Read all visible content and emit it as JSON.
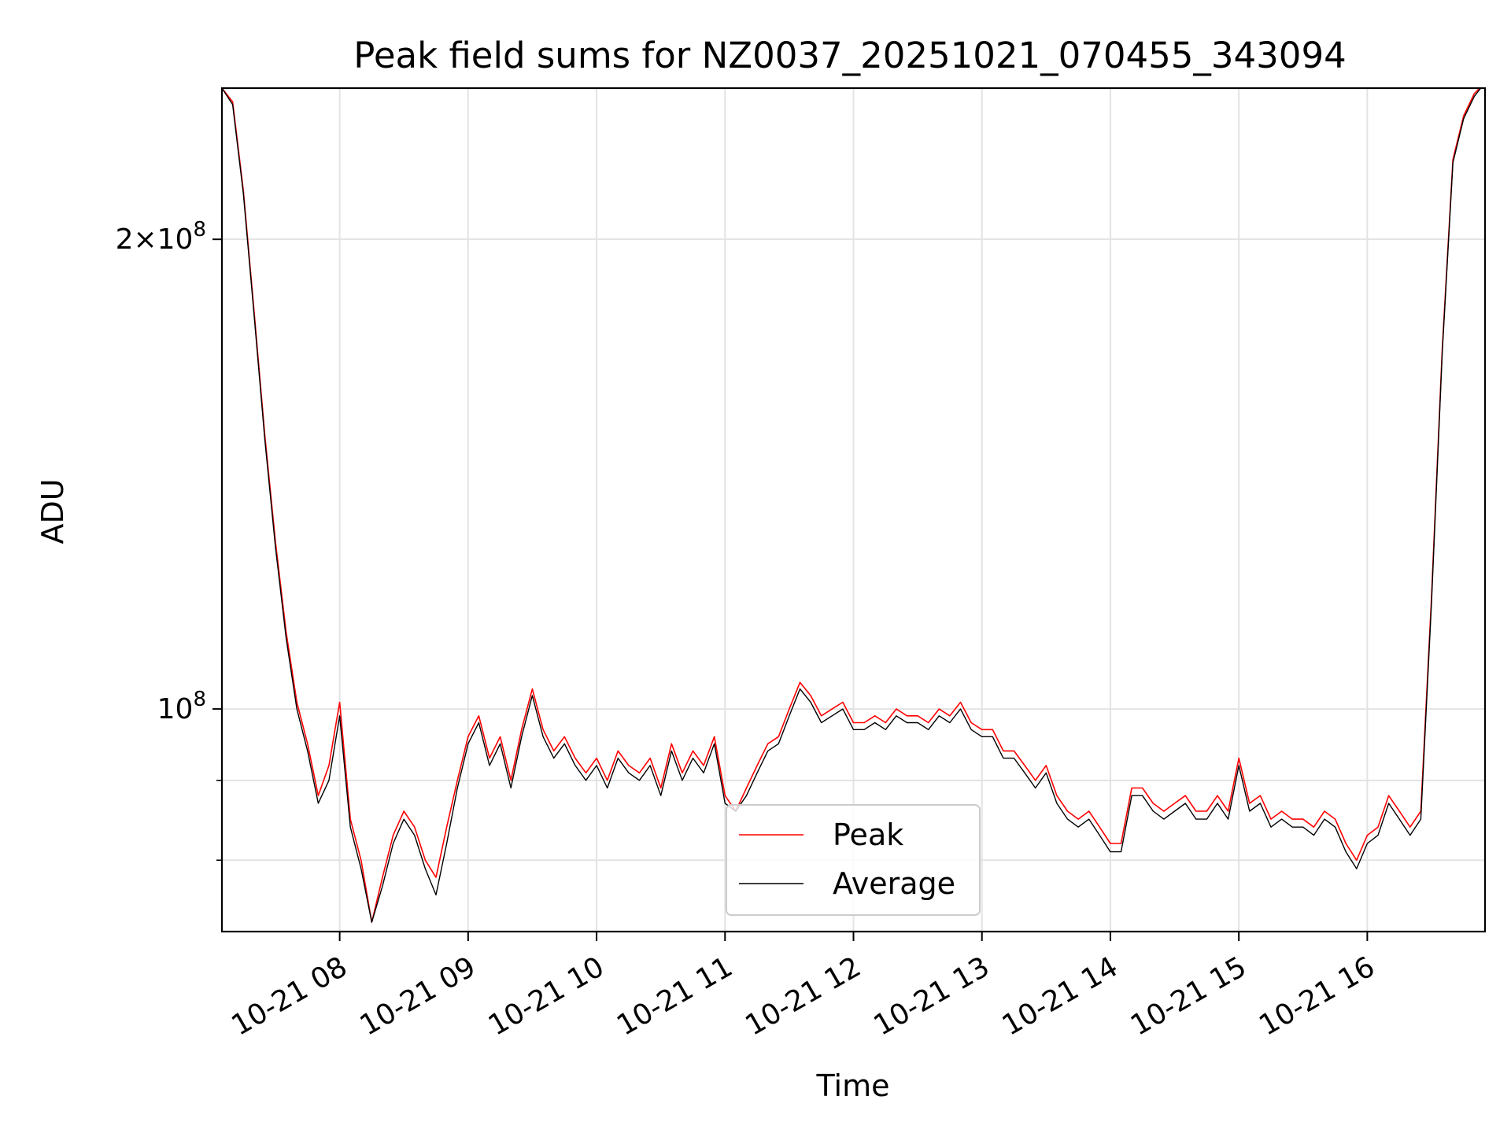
{
  "chart_data": {
    "type": "line",
    "title": "Peak field sums for NZ0037_20251021_070455_343094",
    "xlabel": "Time",
    "ylabel": "ADU",
    "y_scale": "log",
    "grid": true,
    "legend_position": "lower center",
    "xlim": [
      "2025-10-21 07:05",
      "2025-10-21 16:55"
    ],
    "ylim": [
      72000000,
      250000000
    ],
    "x_ticks": [
      "2025-10-21 08:00",
      "2025-10-21 09:00",
      "2025-10-21 10:00",
      "2025-10-21 11:00",
      "2025-10-21 12:00",
      "2025-10-21 13:00",
      "2025-10-21 14:00",
      "2025-10-21 15:00",
      "2025-10-21 16:00"
    ],
    "x_tick_labels": [
      "10-21 08",
      "10-21 09",
      "10-21 10",
      "10-21 11",
      "10-21 12",
      "10-21 13",
      "10-21 14",
      "10-21 15",
      "10-21 16"
    ],
    "y_major_ticks": [
      100000000,
      200000000
    ],
    "y_major_tick_labels": [
      "10^8",
      "2×10^8"
    ],
    "y_minor_ticks": [
      80000000,
      90000000
    ],
    "x": [
      "07:05",
      "07:10",
      "07:15",
      "07:20",
      "07:25",
      "07:30",
      "07:35",
      "07:40",
      "07:45",
      "07:50",
      "07:55",
      "08:00",
      "08:05",
      "08:10",
      "08:15",
      "08:20",
      "08:25",
      "08:30",
      "08:35",
      "08:40",
      "08:45",
      "08:50",
      "08:55",
      "09:00",
      "09:05",
      "09:10",
      "09:15",
      "09:20",
      "09:25",
      "09:30",
      "09:35",
      "09:40",
      "09:45",
      "09:50",
      "09:55",
      "10:00",
      "10:05",
      "10:10",
      "10:15",
      "10:20",
      "10:25",
      "10:30",
      "10:35",
      "10:40",
      "10:45",
      "10:50",
      "10:55",
      "11:00",
      "11:05",
      "11:10",
      "11:15",
      "11:20",
      "11:25",
      "11:30",
      "11:35",
      "11:40",
      "11:45",
      "11:50",
      "11:55",
      "12:00",
      "12:05",
      "12:10",
      "12:15",
      "12:20",
      "12:25",
      "12:30",
      "12:35",
      "12:40",
      "12:45",
      "12:50",
      "12:55",
      "13:00",
      "13:05",
      "13:10",
      "13:15",
      "13:20",
      "13:25",
      "13:30",
      "13:35",
      "13:40",
      "13:45",
      "13:50",
      "13:55",
      "14:00",
      "14:05",
      "14:10",
      "14:15",
      "14:20",
      "14:25",
      "14:30",
      "14:35",
      "14:40",
      "14:45",
      "14:50",
      "14:55",
      "15:00",
      "15:05",
      "15:10",
      "15:15",
      "15:20",
      "15:25",
      "15:30",
      "15:35",
      "15:40",
      "15:45",
      "15:50",
      "15:55",
      "16:00",
      "16:05",
      "16:10",
      "16:15",
      "16:20",
      "16:25",
      "16:30",
      "16:35",
      "16:40",
      "16:45",
      "16:50",
      "16:55"
    ],
    "series": [
      {
        "name": "Peak",
        "color": "#ff0000",
        "values": [
          250,
          245,
          215,
          180,
          150,
          128,
          112,
          101,
          95,
          88,
          92,
          101,
          85,
          80,
          73,
          78,
          83,
          86,
          84,
          80,
          78,
          84,
          90,
          96,
          99,
          93,
          96,
          90,
          97,
          103,
          97,
          94,
          96,
          93,
          91,
          93,
          90,
          94,
          92,
          91,
          93,
          89,
          95,
          91,
          94,
          92,
          96,
          88,
          86,
          89,
          92,
          95,
          96,
          100,
          104,
          102,
          99,
          100,
          101,
          98,
          98,
          99,
          98,
          100,
          99,
          99,
          98,
          100,
          99,
          101,
          98,
          97,
          97,
          94,
          94,
          92,
          90,
          92,
          88,
          86,
          85,
          86,
          84,
          82,
          82,
          89,
          89,
          87,
          86,
          87,
          88,
          86,
          86,
          88,
          86,
          93,
          87,
          88,
          85,
          86,
          85,
          85,
          84,
          86,
          85,
          82,
          80,
          83,
          84,
          88,
          86,
          84,
          86,
          118,
          170,
          225,
          240,
          248,
          252
        ],
        "mark_count_note": ""
      },
      {
        "name": "Average",
        "color": "#000000",
        "values": [
          250,
          244,
          214,
          179,
          149,
          127,
          111,
          100,
          94,
          87,
          90,
          99,
          84,
          79,
          73,
          77,
          82,
          85,
          83,
          79,
          76,
          82,
          89,
          95,
          98,
          92,
          95,
          89,
          96,
          102,
          96,
          93,
          95,
          92,
          90,
          92,
          89,
          93,
          91,
          90,
          92,
          88,
          94,
          90,
          93,
          91,
          95,
          87,
          86,
          88,
          91,
          94,
          95,
          99,
          103,
          101,
          98,
          99,
          100,
          97,
          97,
          98,
          97,
          99,
          98,
          98,
          97,
          99,
          98,
          100,
          97,
          96,
          96,
          93,
          93,
          91,
          89,
          91,
          87,
          85,
          84,
          85,
          83,
          81,
          81,
          88,
          88,
          86,
          85,
          86,
          87,
          85,
          85,
          87,
          85,
          92,
          86,
          87,
          84,
          85,
          84,
          84,
          83,
          85,
          84,
          81,
          79,
          82,
          83,
          87,
          85,
          83,
          85,
          117,
          169,
          224,
          239,
          247,
          252
        ]
      }
    ]
  }
}
